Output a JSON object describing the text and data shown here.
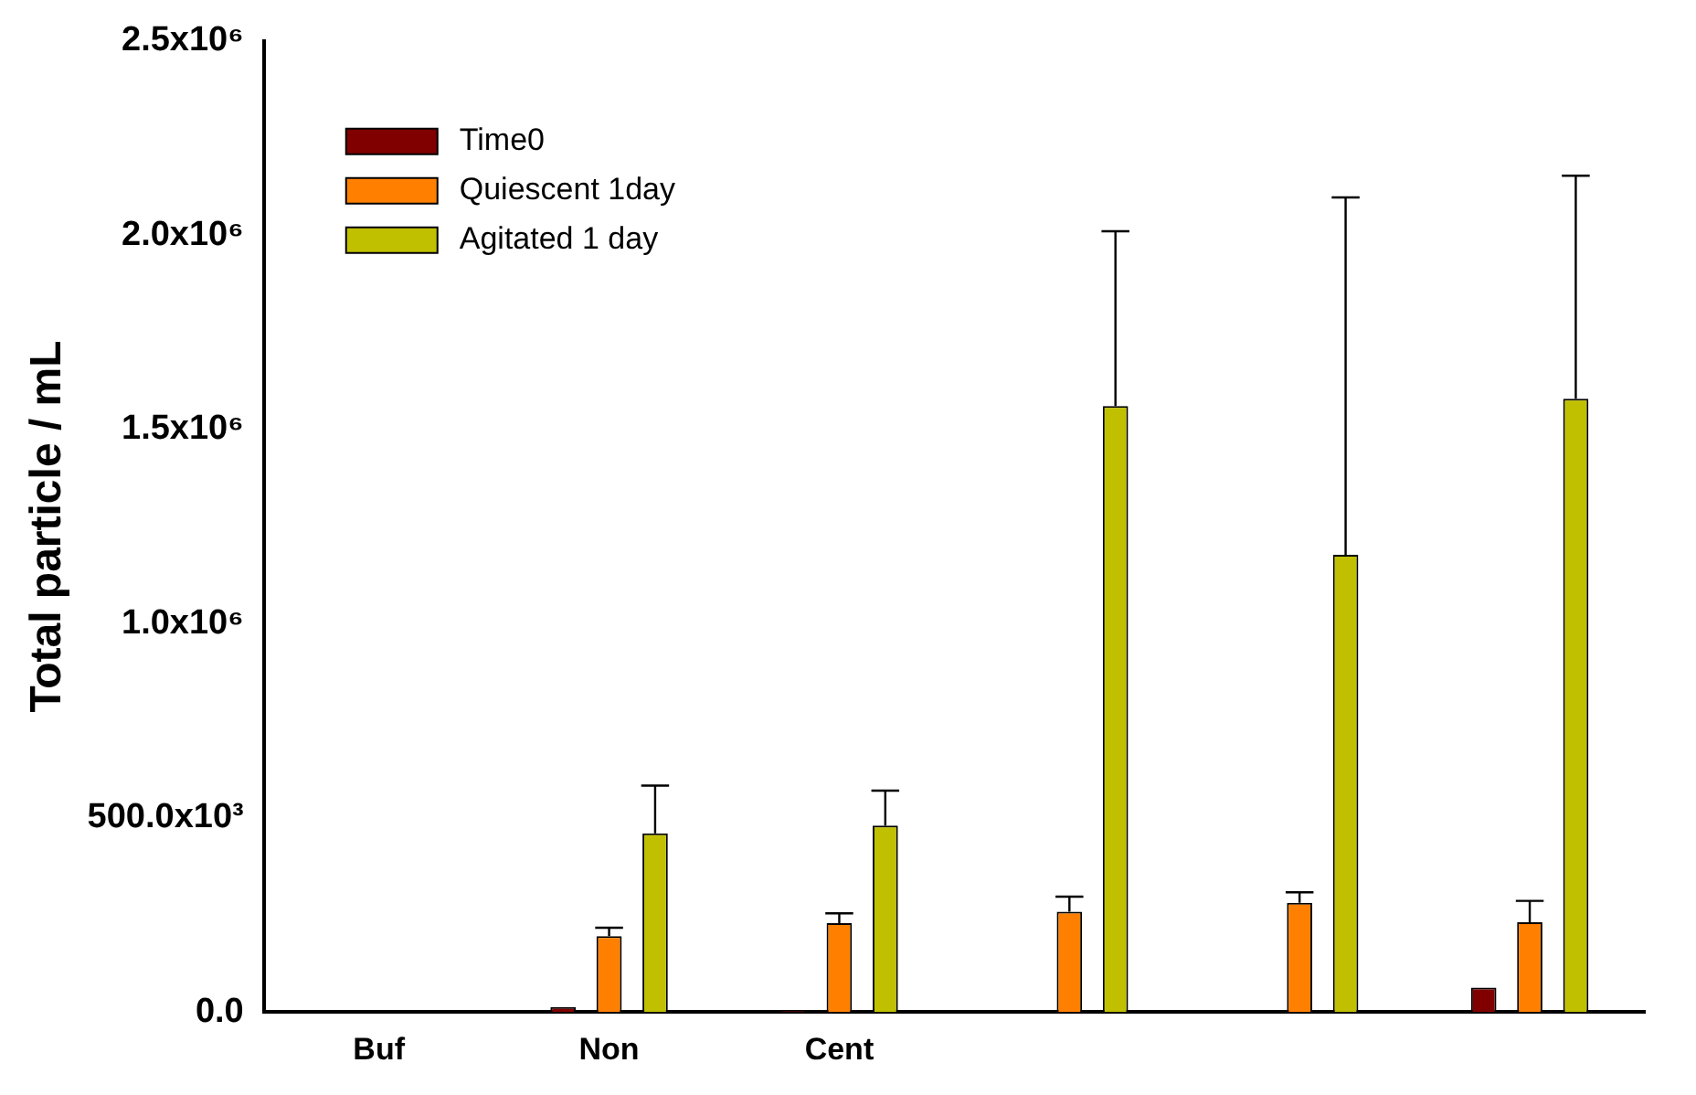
{
  "chart_data": {
    "type": "bar",
    "ylabel": "Total particle / mL",
    "categories": [
      "Buf",
      "Non",
      "Cent",
      null,
      null,
      null
    ],
    "series": [
      {
        "name": "Time0",
        "color": "#800000",
        "values": [
          0,
          13000,
          3000,
          0,
          0,
          63000
        ]
      },
      {
        "name": "Quiescent 1day",
        "color": "#ff8000",
        "values": [
          0,
          195000,
          229000,
          258000,
          281000,
          231000
        ],
        "errors": [
          null,
          [
            195000,
            217000
          ],
          [
            229000,
            254000
          ],
          [
            258000,
            297000
          ],
          [
            281000,
            308000
          ],
          [
            231000,
            286000
          ]
        ]
      },
      {
        "name": "Agitated 1 day",
        "color": "#c0c000",
        "values": [
          0,
          460000,
          480000,
          1560000,
          1177000,
          1579000
        ],
        "errors": [
          null,
          [
            460000,
            583000
          ],
          [
            480000,
            570000
          ],
          [
            1560000,
            2010000
          ],
          [
            1177000,
            2097000
          ],
          [
            1579000,
            2153000
          ]
        ]
      }
    ],
    "ylim": [
      0,
      2500000
    ],
    "yticks": [
      {
        "value": 0,
        "label": "0.0"
      },
      {
        "value": 500000,
        "label": "500.0x10³"
      },
      {
        "value": 1000000,
        "label": "1.0x10⁶"
      },
      {
        "value": 1500000,
        "label": "1.5x10⁶"
      },
      {
        "value": 2000000,
        "label": "2.0x10⁶"
      },
      {
        "value": 2500000,
        "label": "2.5x10⁶"
      }
    ],
    "grid": false,
    "legend": "top left"
  }
}
